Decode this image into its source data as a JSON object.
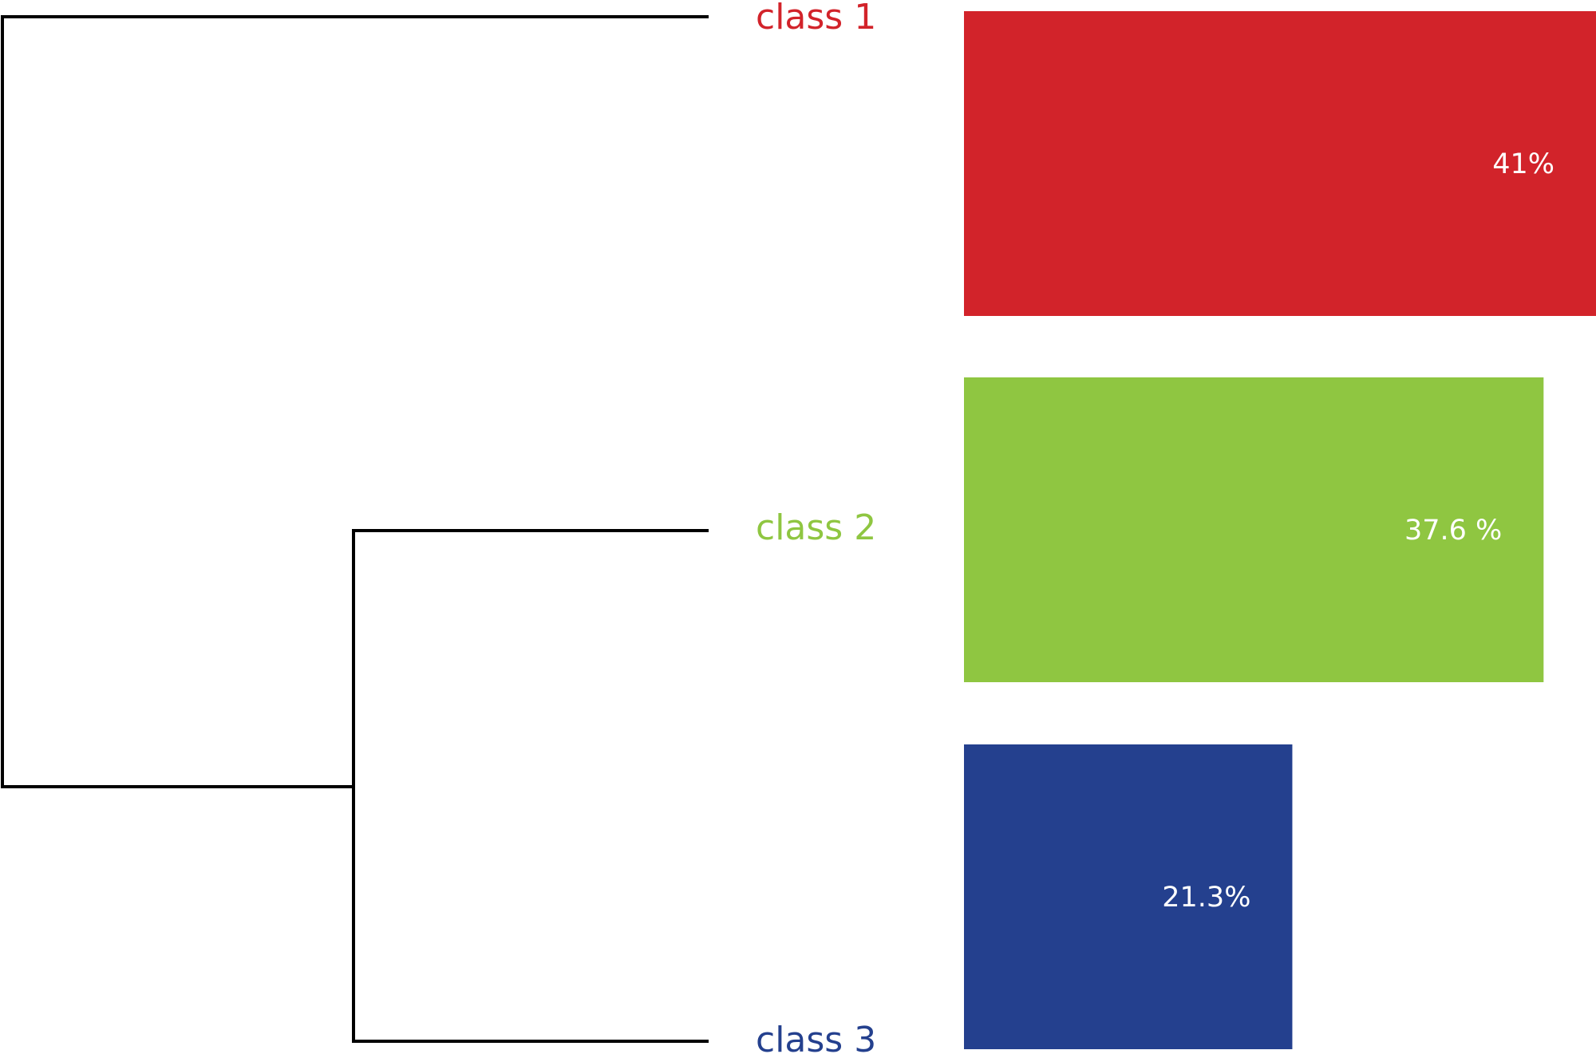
{
  "chart_data": {
    "type": "bar",
    "orientation": "horizontal",
    "categories": [
      "class 1",
      "class 2",
      "class 3"
    ],
    "values": [
      41,
      37.6,
      21.3
    ],
    "value_labels": [
      "41%",
      "37.6 %",
      "21.3%"
    ],
    "colors": [
      "#d2232a",
      "#8fc641",
      "#24408e"
    ],
    "dendrogram": {
      "leaves": [
        "class 1",
        "class 2",
        "class 3"
      ],
      "merges": [
        {
          "children": [
            "class 2",
            "class 3"
          ]
        },
        {
          "children": [
            "class 1",
            "class 2 + class 3"
          ]
        }
      ]
    },
    "xlim": [
      0,
      41
    ]
  }
}
